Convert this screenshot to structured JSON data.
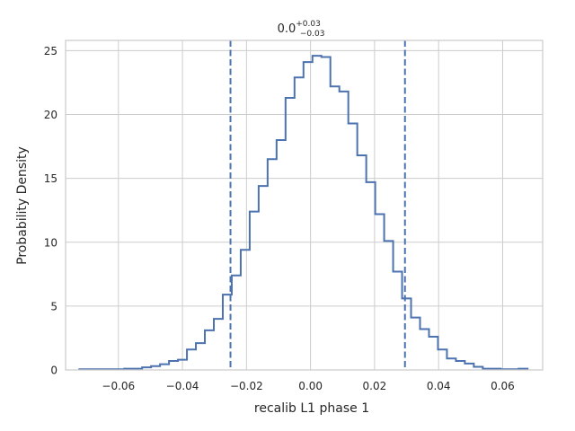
{
  "chart_data": {
    "type": "histogram",
    "title": {
      "base": "0.0",
      "sup": "+0.03",
      "sub": "−0.03"
    },
    "xlabel": "recalib L1 phase 1",
    "ylabel": "Probability Density",
    "xlim": [
      -0.0765,
      0.0725
    ],
    "ylim": [
      0,
      25.8
    ],
    "xticks": [
      -0.06,
      -0.04,
      -0.02,
      0.0,
      0.02,
      0.04,
      0.06
    ],
    "xtick_labels": [
      "−0.06",
      "−0.04",
      "−0.02",
      "0.00",
      "0.02",
      "0.04",
      "0.06"
    ],
    "yticks": [
      0,
      5,
      10,
      15,
      20,
      25
    ],
    "ytick_labels": [
      "0",
      "5",
      "10",
      "15",
      "20",
      "25"
    ],
    "grid": true,
    "series_color": "#4c72b0",
    "bin_edges": [
      -0.0722,
      -0.0694,
      -0.0666,
      -0.0638,
      -0.061,
      -0.0582,
      -0.0554,
      -0.0526,
      -0.0498,
      -0.047,
      -0.0442,
      -0.0414,
      -0.0386,
      -0.0358,
      -0.033,
      -0.0302,
      -0.0274,
      -0.0246,
      -0.0218,
      -0.019,
      -0.0162,
      -0.0134,
      -0.0106,
      -0.0078,
      -0.005,
      -0.0022,
      0.0006,
      0.0034,
      0.0062,
      0.009,
      0.0118,
      0.0146,
      0.0174,
      0.0202,
      0.023,
      0.0258,
      0.0286,
      0.0314,
      0.0342,
      0.037,
      0.0398,
      0.0426,
      0.0454,
      0.0482,
      0.051,
      0.0538,
      0.0566,
      0.0594,
      0.0622,
      0.065,
      0.0678
    ],
    "densities": [
      0.05,
      0.05,
      0.05,
      0.05,
      0.05,
      0.1,
      0.1,
      0.2,
      0.3,
      0.45,
      0.7,
      0.8,
      1.6,
      2.1,
      3.1,
      4.0,
      5.9,
      7.4,
      9.4,
      12.4,
      14.4,
      16.5,
      18.0,
      21.3,
      22.9,
      24.1,
      24.6,
      24.5,
      22.2,
      21.8,
      19.3,
      16.8,
      14.7,
      12.2,
      10.1,
      7.7,
      5.6,
      4.1,
      3.2,
      2.6,
      1.6,
      0.9,
      0.7,
      0.5,
      0.25,
      0.1,
      0.1,
      0.05,
      0.05,
      0.1
    ],
    "vlines": [
      -0.025,
      0.0295
    ],
    "vline_style": "dashed"
  }
}
